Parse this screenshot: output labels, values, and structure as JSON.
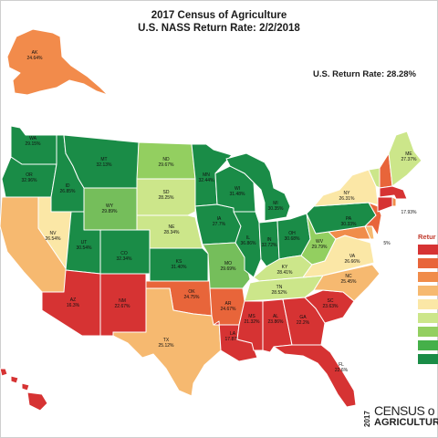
{
  "title_line1": "2017 Census of Agriculture",
  "title_line2": "U.S. NASS Return Rate: 2/2/2018",
  "us_return_rate": "U.S. Return Rate: 28.28%",
  "legend": {
    "title": "Retur",
    "swatches": [
      "#d63333",
      "#e8653a",
      "#f08c4a",
      "#f6b970",
      "#fbe7a6",
      "#cce68a",
      "#93cf60",
      "#45b049",
      "#1a8c47"
    ]
  },
  "logo": {
    "year": "2017",
    "line1": "CENSUS o",
    "line2": "AGRICULTURE"
  },
  "states": [
    {
      "abbr": "AK",
      "rate": "24.64%",
      "color": "#f28b4b"
    },
    {
      "abbr": "WA",
      "rate": "29.15%",
      "color": "#1a8c47"
    },
    {
      "abbr": "OR",
      "rate": "32.96%",
      "color": "#1a8c47"
    },
    {
      "abbr": "ID",
      "rate": "26.85%",
      "color": "#1a8c47"
    },
    {
      "abbr": "MT",
      "rate": "32.13%",
      "color": "#1a8c47"
    },
    {
      "abbr": "WY",
      "rate": "29.89%",
      "color": "#75be5b"
    },
    {
      "abbr": "NV",
      "rate": "26.54%",
      "color": "#fbe7a6"
    },
    {
      "abbr": "UT",
      "rate": "30.54%",
      "color": "#1a8c47"
    },
    {
      "abbr": "CO",
      "rate": "32.34%",
      "color": "#1a8c47"
    },
    {
      "abbr": "AZ",
      "rate": "16.3%",
      "color": "#d63333"
    },
    {
      "abbr": "NM",
      "rate": "22.67%",
      "color": "#d63333"
    },
    {
      "abbr": "ND",
      "rate": "29.67%",
      "color": "#93cf60"
    },
    {
      "abbr": "SD",
      "rate": "28.25%",
      "color": "#cce68a"
    },
    {
      "abbr": "NE",
      "rate": "28.34%",
      "color": "#cce68a"
    },
    {
      "abbr": "KS",
      "rate": "31.40%",
      "color": "#1a8c47"
    },
    {
      "abbr": "OK",
      "rate": "24.75%",
      "color": "#e8653a"
    },
    {
      "abbr": "TX",
      "rate": "25.12%",
      "color": "#f6b970"
    },
    {
      "abbr": "MN",
      "rate": "32.44%",
      "color": "#1a8c47"
    },
    {
      "abbr": "IA",
      "rate": "27.7%",
      "color": "#1a8c47"
    },
    {
      "abbr": "MO",
      "rate": "29.69%",
      "color": "#75be5b"
    },
    {
      "abbr": "AR",
      "rate": "24.67%",
      "color": "#e8653a"
    },
    {
      "abbr": "LA",
      "rate": "17.87%",
      "color": "#d63333"
    },
    {
      "abbr": "WI",
      "rate": "31.48%",
      "color": "#1a8c47"
    },
    {
      "abbr": "IL",
      "rate": "36.86%",
      "color": "#1a8c47"
    },
    {
      "abbr": "MI",
      "rate": "30.35%",
      "color": "#1a8c47"
    },
    {
      "abbr": "IN",
      "rate": "32.72%",
      "color": "#1a8c47"
    },
    {
      "abbr": "OH",
      "rate": "30.68%",
      "color": "#1a8c47"
    },
    {
      "abbr": "KY",
      "rate": "28.41%",
      "color": "#cce68a"
    },
    {
      "abbr": "TN",
      "rate": "28.52%",
      "color": "#cce68a"
    },
    {
      "abbr": "MS",
      "rate": "21.32%",
      "color": "#d63333"
    },
    {
      "abbr": "AL",
      "rate": "23.86%",
      "color": "#d63333"
    },
    {
      "abbr": "GA",
      "rate": "22.2%",
      "color": "#d63333"
    },
    {
      "abbr": "FL",
      "rate": "22.6%",
      "color": "#d63333"
    },
    {
      "abbr": "SC",
      "rate": "23.63%",
      "color": "#d63333"
    },
    {
      "abbr": "NC",
      "rate": "25.45%",
      "color": "#f6b970"
    },
    {
      "abbr": "VA",
      "rate": "26.66%",
      "color": "#fbe7a6"
    },
    {
      "abbr": "WV",
      "rate": "29.79%",
      "color": "#93cf60"
    },
    {
      "abbr": "PA",
      "rate": "30.33%",
      "color": "#1a8c47"
    },
    {
      "abbr": "NY",
      "rate": "26.31%",
      "color": "#fbe7a6"
    },
    {
      "abbr": "VT",
      "rate": "28.12%",
      "color": "#cce68a"
    },
    {
      "abbr": "NH",
      "rate": "",
      "color": "#e8653a"
    },
    {
      "abbr": "ME",
      "rate": "27.37%",
      "color": "#cce68a"
    },
    {
      "abbr": "MA",
      "rate": "",
      "color": "#d63333"
    },
    {
      "abbr": "CT",
      "rate": "17.93%",
      "color": "#d63333"
    },
    {
      "abbr": "RI",
      "rate": "",
      "color": "#f08c4a"
    },
    {
      "abbr": "NJ",
      "rate": "",
      "color": "#e8653a"
    },
    {
      "abbr": "DE",
      "rate": "",
      "color": "#f6b970"
    },
    {
      "abbr": "MD",
      "rate": "",
      "color": "#f08c4a"
    },
    {
      "abbr": "CA",
      "rate": "",
      "color": "#f6b970"
    },
    {
      "abbr": "HI",
      "rate": "",
      "color": "#d63333"
    }
  ],
  "extra_labels": {
    "east_coast_pct": "5%"
  }
}
